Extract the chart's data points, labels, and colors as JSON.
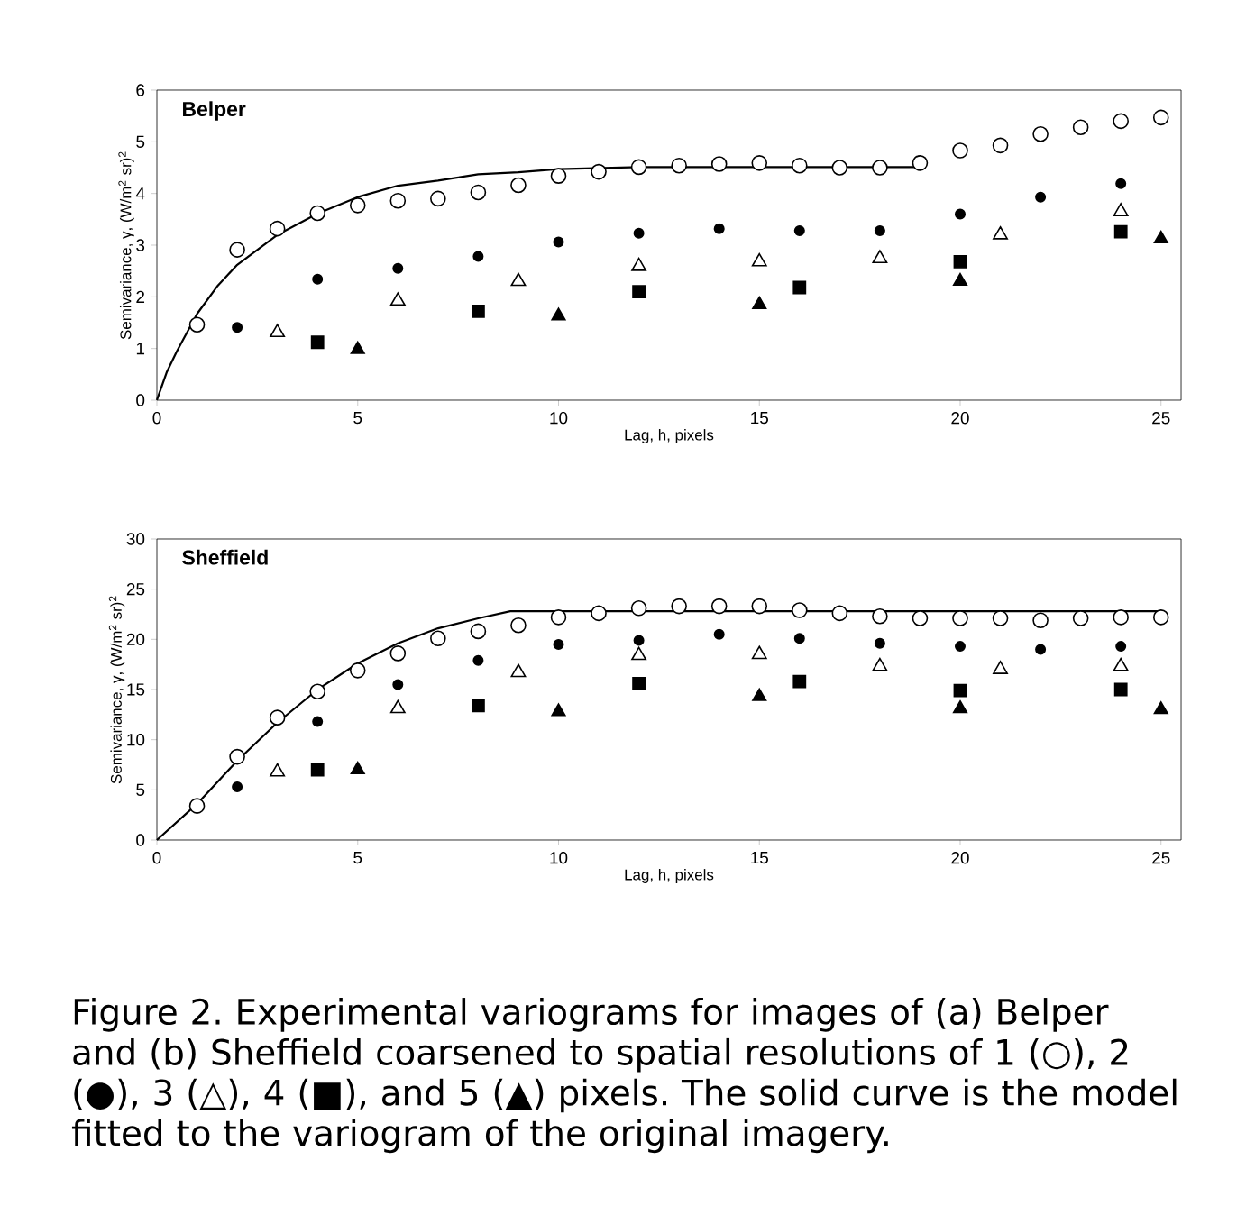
{
  "chart_data": [
    {
      "type": "scatter",
      "title": "Belper",
      "xlabel": "Lag, h, pixels",
      "ylabel": "Semivariance, γ, (W/m$^{2}$ sr)$^{2}$",
      "xlim": [
        0,
        25.5
      ],
      "ylim": [
        0,
        6
      ],
      "xticks": [
        0,
        5,
        10,
        15,
        20,
        25
      ],
      "yticks": [
        0,
        1,
        2,
        3,
        4,
        5,
        6
      ],
      "series": [
        {
          "color": "#000000",
          "marker": "circle",
          "x": [
            1,
            2,
            3,
            4,
            5,
            6,
            7,
            8,
            9,
            10,
            11,
            12,
            13,
            14,
            15,
            16,
            17,
            18,
            19,
            20,
            21,
            22,
            23,
            24,
            25
          ],
          "values": [
            1.46,
            2.91,
            3.32,
            3.62,
            3.77,
            3.86,
            3.9,
            4.02,
            4.16,
            4.34,
            4.42,
            4.51,
            4.54,
            4.57,
            4.59,
            4.54,
            4.5,
            4.5,
            4.59,
            4.83,
            4.93,
            5.15,
            5.28,
            5.4,
            5.47
          ]
        },
        {
          "color": "#000000",
          "marker": "circle",
          "x": [
            2,
            4,
            6,
            8,
            10,
            12,
            14,
            16,
            18,
            20,
            22,
            24
          ],
          "values": [
            1.41,
            2.34,
            2.55,
            2.78,
            3.06,
            3.23,
            3.32,
            3.28,
            3.28,
            3.6,
            3.93,
            4.19
          ]
        },
        {
          "color": "#000000",
          "marker": "triangle",
          "x": [
            3,
            6,
            9,
            12,
            15,
            18,
            21,
            24
          ],
          "values": [
            1.31,
            1.92,
            2.3,
            2.59,
            2.68,
            2.74,
            3.2,
            3.65
          ]
        },
        {
          "color": "#000000",
          "marker": "square",
          "x": [
            4,
            8,
            12,
            16,
            20,
            24
          ],
          "values": [
            1.12,
            1.72,
            2.1,
            2.18,
            2.68,
            3.26
          ]
        },
        {
          "color": "#000000",
          "marker": "triangle",
          "x": [
            5,
            10,
            15,
            20,
            25
          ],
          "values": [
            0.98,
            1.63,
            1.85,
            2.3,
            3.12
          ]
        },
        {
          "type": "line",
          "color": "#000000",
          "marker": "none",
          "x": [
            0,
            0.25,
            0.5,
            1,
            1.5,
            2,
            3,
            4,
            5,
            6,
            7,
            8,
            9,
            10,
            12,
            15,
            19
          ],
          "values": [
            0,
            0.55,
            0.95,
            1.67,
            2.2,
            2.62,
            3.2,
            3.61,
            3.93,
            4.15,
            4.25,
            4.37,
            4.41,
            4.47,
            4.51,
            4.51,
            4.51
          ]
        }
      ]
    },
    {
      "type": "scatter",
      "title": "Sheffield",
      "xlabel": "Lag, h, pixels",
      "ylabel": "Semivariance, γ, (W/m$^{2}$ sr)$^{2}$",
      "xlim": [
        0,
        25.5
      ],
      "ylim": [
        0,
        30
      ],
      "xticks": [
        0,
        5,
        10,
        15,
        20,
        25
      ],
      "yticks": [
        0,
        5,
        10,
        15,
        20,
        25,
        30
      ],
      "annotations": [
        "Figure 2. Experimental variograms for images of (a) Belper and (b) Sheffield coarsened to spatial resolutions of 1 (○), 2 (●), 3 (△), 4 (■), and 5 (▲) pixels. The solid curve is the model fitted to the variogram of the original imagery."
      ],
      "series": [
        {
          "color": "#000000",
          "marker": "circle",
          "x": [
            1,
            2,
            3,
            4,
            5,
            6,
            7,
            8,
            9,
            10,
            11,
            12,
            13,
            14,
            15,
            16,
            17,
            18,
            19,
            20,
            21,
            22,
            23,
            24,
            25
          ],
          "values": [
            3.4,
            8.3,
            12.2,
            14.8,
            16.9,
            18.6,
            20.1,
            20.8,
            21.4,
            22.2,
            22.6,
            23.1,
            23.3,
            23.3,
            23.3,
            22.9,
            22.6,
            22.3,
            22.1,
            22.1,
            22.1,
            21.9,
            22.1,
            22.2,
            22.2
          ]
        },
        {
          "color": "#000000",
          "marker": "circle",
          "x": [
            2,
            4,
            6,
            8,
            10,
            12,
            14,
            16,
            18,
            20,
            22,
            24
          ],
          "values": [
            5.3,
            11.8,
            15.5,
            17.9,
            19.5,
            19.9,
            20.5,
            20.1,
            19.6,
            19.3,
            19.0,
            19.3
          ]
        },
        {
          "color": "#000000",
          "marker": "triangle",
          "x": [
            3,
            6,
            9,
            12,
            15,
            18,
            21,
            24
          ],
          "values": [
            6.8,
            13.1,
            16.7,
            18.4,
            18.5,
            17.3,
            17.0,
            17.3
          ]
        },
        {
          "color": "#000000",
          "marker": "square",
          "x": [
            4,
            8,
            12,
            16,
            20,
            24
          ],
          "values": [
            7.0,
            13.4,
            15.6,
            15.8,
            14.9,
            15.0
          ]
        },
        {
          "color": "#000000",
          "marker": "triangle",
          "x": [
            5,
            10,
            15,
            20,
            25
          ],
          "values": [
            7.0,
            12.8,
            14.3,
            13.1,
            13.0
          ]
        },
        {
          "type": "line",
          "color": "#000000",
          "marker": "none",
          "x": [
            0,
            1,
            2,
            3,
            4,
            5,
            6,
            7,
            8,
            8.8,
            25
          ],
          "values": [
            0,
            3.6,
            7.9,
            11.7,
            15.0,
            17.6,
            19.6,
            21.1,
            22.1,
            22.8,
            22.8
          ]
        }
      ]
    }
  ]
}
